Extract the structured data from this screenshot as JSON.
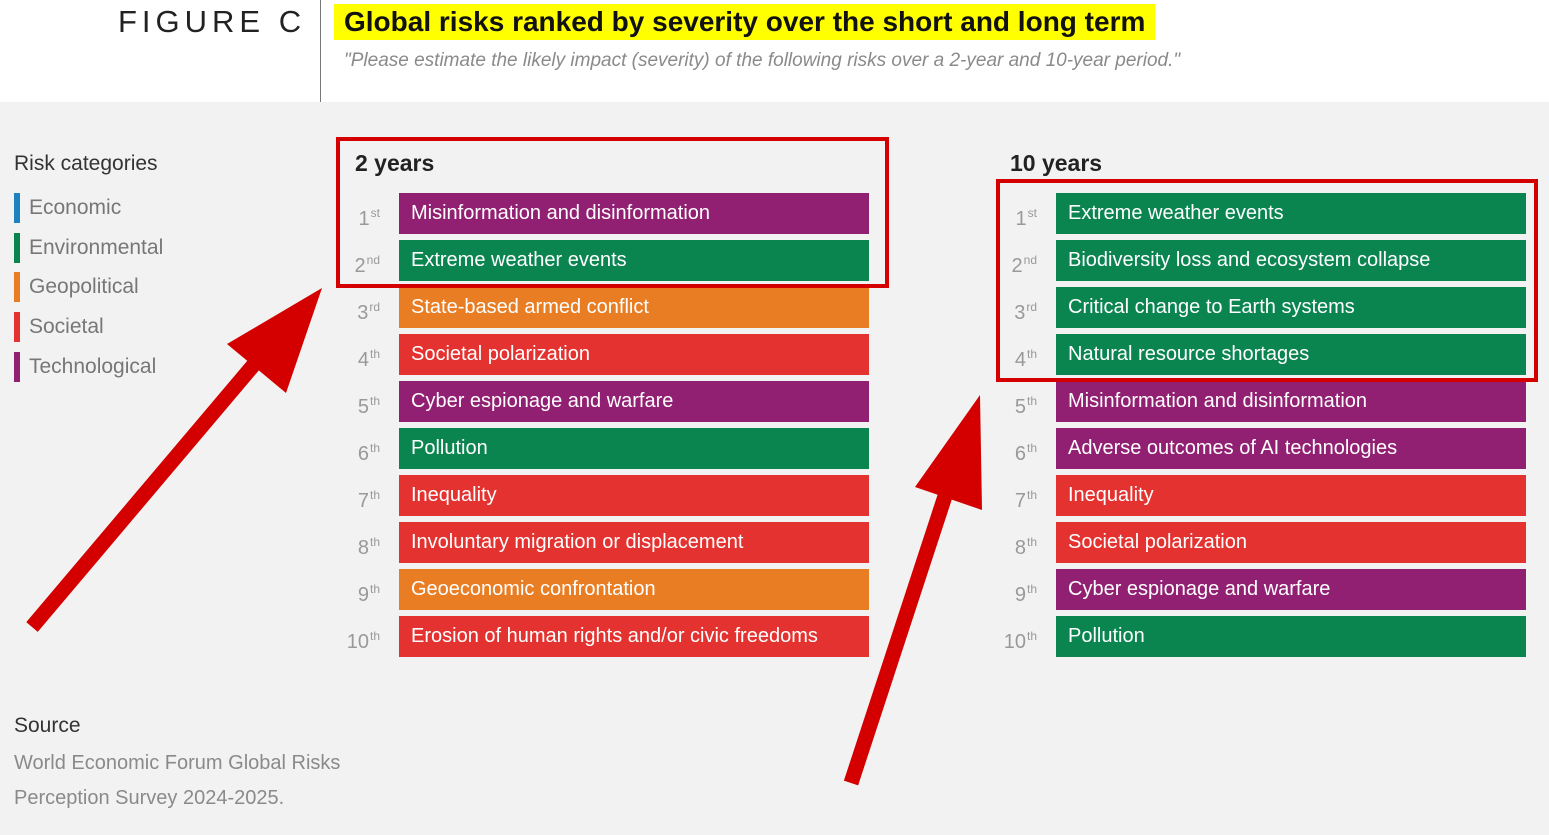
{
  "header": {
    "figure_label": "FIGURE C",
    "title": "Global risks ranked by severity over the short and long term",
    "subtitle": "\"Please estimate the likely impact (severity) of the following risks over a 2-year and 10-year period.\""
  },
  "legend": {
    "title": "Risk categories",
    "items": [
      {
        "label": "Economic",
        "color": "#1f82c0"
      },
      {
        "label": "Environmental",
        "color": "#0b8550"
      },
      {
        "label": "Geopolitical",
        "color": "#e87d24"
      },
      {
        "label": "Societal",
        "color": "#e3322f"
      },
      {
        "label": "Technological",
        "color": "#912072"
      }
    ]
  },
  "columns": [
    {
      "title": "2 years",
      "rows": [
        {
          "rank": "1",
          "suffix": "st",
          "label": "Misinformation and disinformation",
          "category": "Technological"
        },
        {
          "rank": "2",
          "suffix": "nd",
          "label": "Extreme weather events",
          "category": "Environmental"
        },
        {
          "rank": "3",
          "suffix": "rd",
          "label": "State-based armed conflict",
          "category": "Geopolitical"
        },
        {
          "rank": "4",
          "suffix": "th",
          "label": "Societal polarization",
          "category": "Societal"
        },
        {
          "rank": "5",
          "suffix": "th",
          "label": "Cyber espionage and warfare",
          "category": "Technological"
        },
        {
          "rank": "6",
          "suffix": "th",
          "label": "Pollution",
          "category": "Environmental"
        },
        {
          "rank": "7",
          "suffix": "th",
          "label": "Inequality",
          "category": "Societal"
        },
        {
          "rank": "8",
          "suffix": "th",
          "label": "Involuntary migration or displacement",
          "category": "Societal"
        },
        {
          "rank": "9",
          "suffix": "th",
          "label": "Geoeconomic confrontation",
          "category": "Geopolitical"
        },
        {
          "rank": "10",
          "suffix": "th",
          "label": "Erosion of human rights and/or civic freedoms",
          "category": "Societal"
        }
      ]
    },
    {
      "title": "10 years",
      "rows": [
        {
          "rank": "1",
          "suffix": "st",
          "label": "Extreme weather events",
          "category": "Environmental"
        },
        {
          "rank": "2",
          "suffix": "nd",
          "label": "Biodiversity loss and ecosystem collapse",
          "category": "Environmental"
        },
        {
          "rank": "3",
          "suffix": "rd",
          "label": "Critical change to Earth systems",
          "category": "Environmental"
        },
        {
          "rank": "4",
          "suffix": "th",
          "label": "Natural resource shortages",
          "category": "Environmental"
        },
        {
          "rank": "5",
          "suffix": "th",
          "label": "Misinformation and disinformation",
          "category": "Technological"
        },
        {
          "rank": "6",
          "suffix": "th",
          "label": "Adverse outcomes of AI technologies",
          "category": "Technological"
        },
        {
          "rank": "7",
          "suffix": "th",
          "label": "Inequality",
          "category": "Societal"
        },
        {
          "rank": "8",
          "suffix": "th",
          "label": "Societal polarization",
          "category": "Societal"
        },
        {
          "rank": "9",
          "suffix": "th",
          "label": "Cyber espionage and warfare",
          "category": "Technological"
        },
        {
          "rank": "10",
          "suffix": "th",
          "label": "Pollution",
          "category": "Environmental"
        }
      ]
    }
  ],
  "source": {
    "title": "Source",
    "text": "World Economic Forum Global Risks Perception Survey 2024-2025."
  },
  "annotation_color": "#d40000"
}
